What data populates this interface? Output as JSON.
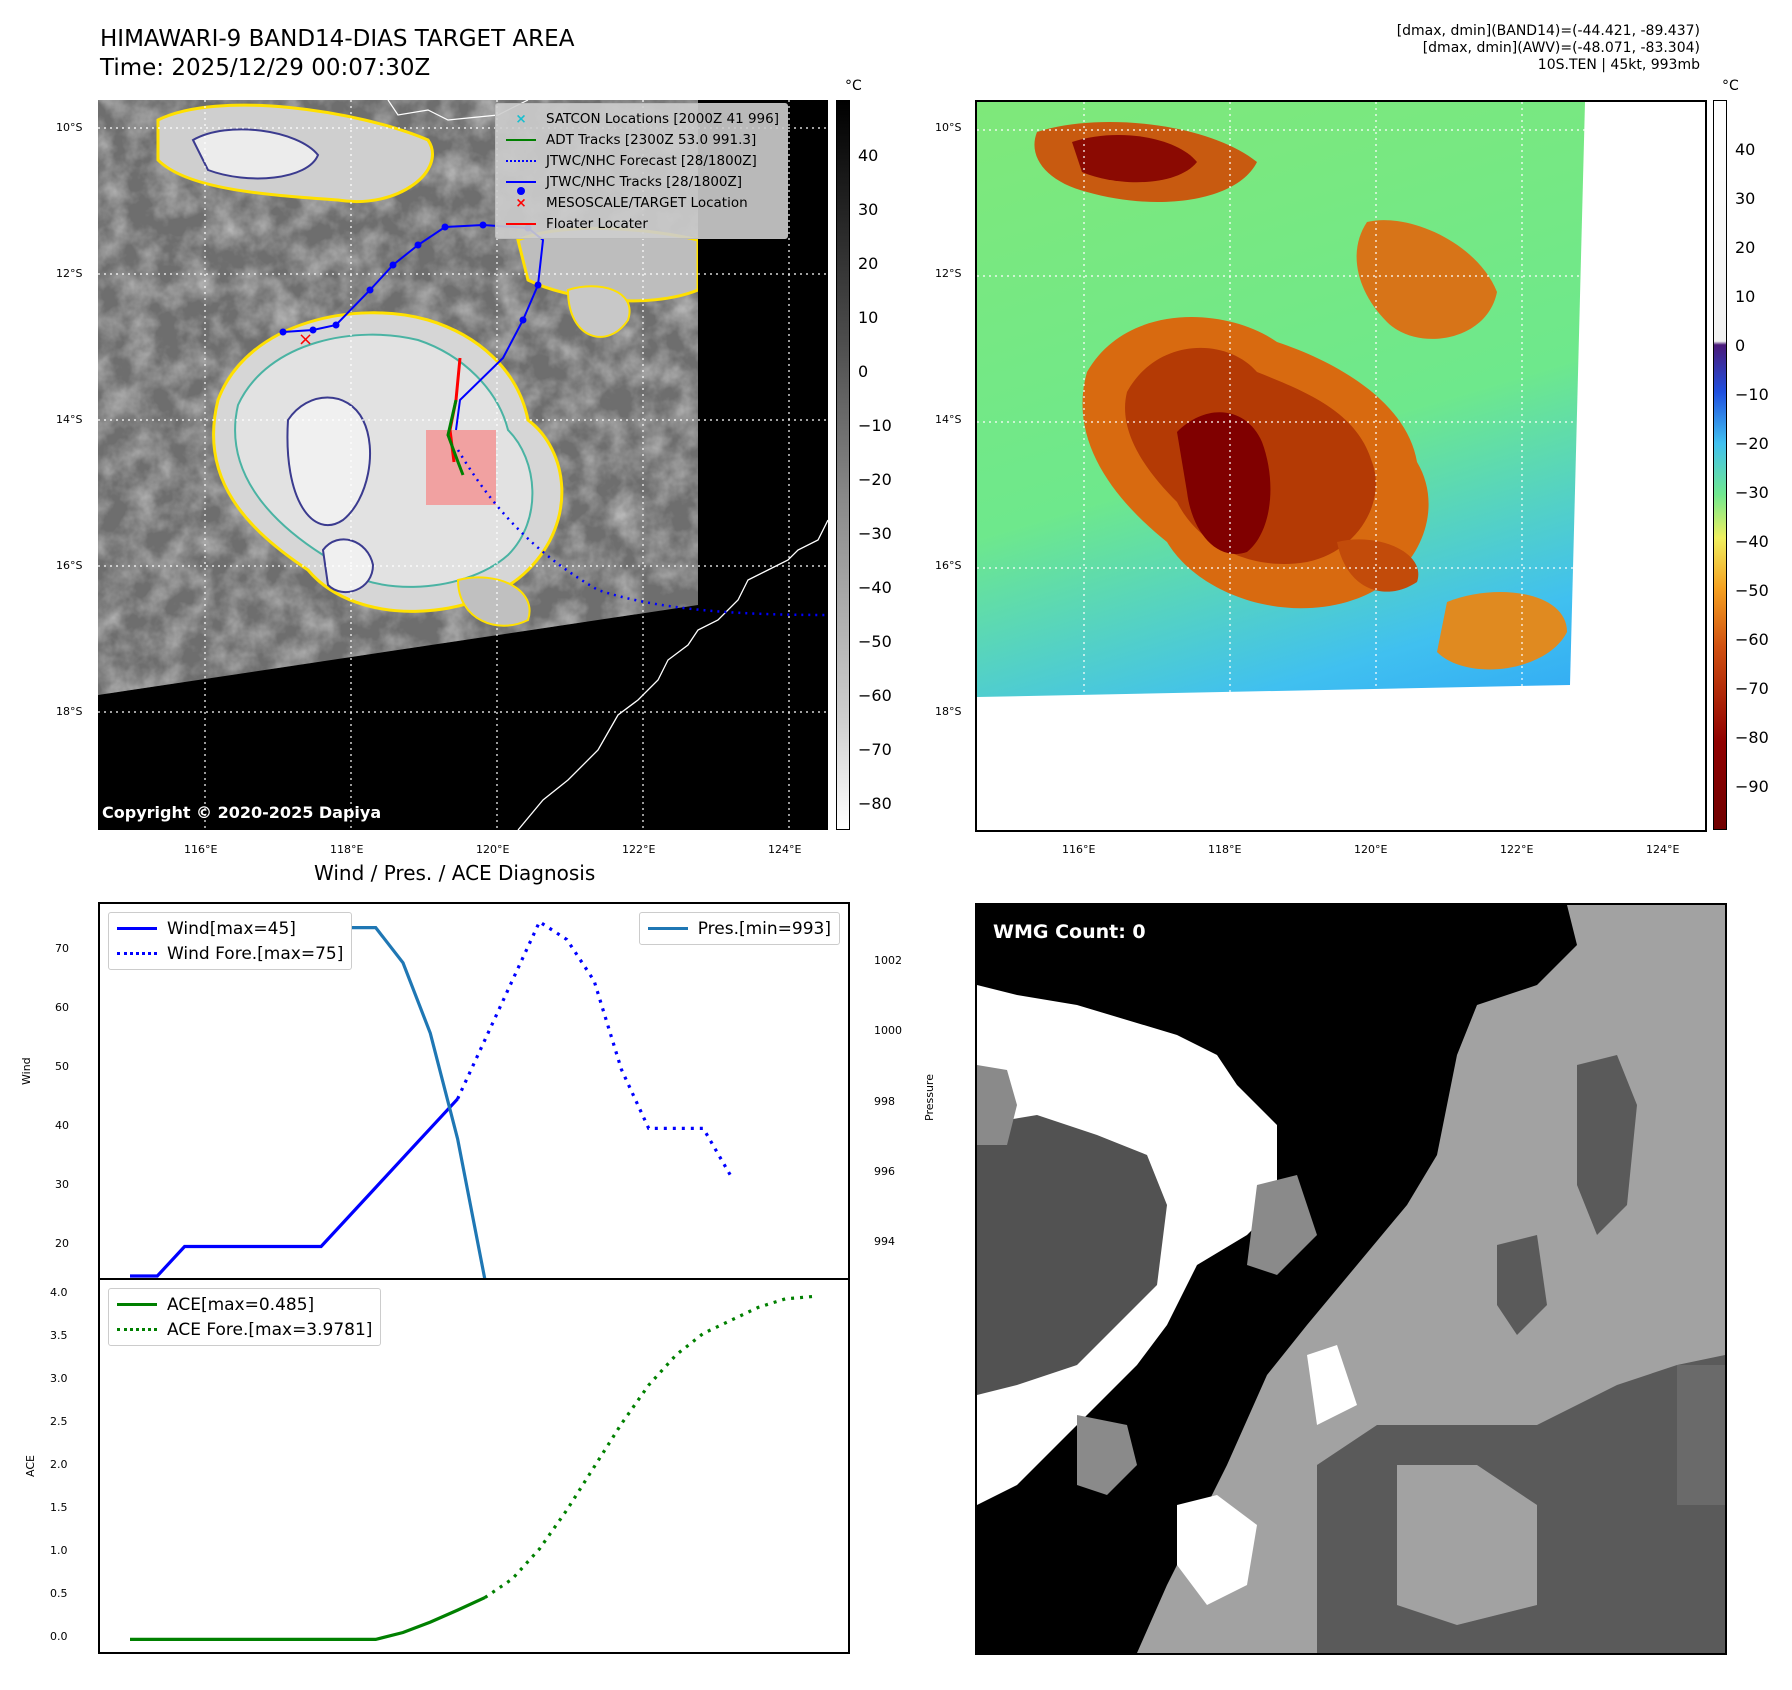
{
  "header": {
    "title_line1": "HIMAWARI-9 BAND14-DIAS TARGET AREA",
    "title_line2": "Time: 2025/12/29 00:07:30Z",
    "info_line1": "[dmax, dmin](BAND14)=(-44.421, -89.437)",
    "info_line2": "[dmax, dmin](AWV)=(-48.071, -83.304)",
    "info_line3": "10S.TEN | 45kt, 993mb"
  },
  "map_axes": {
    "lat_ticks": [
      "10°S",
      "12°S",
      "14°S",
      "16°S",
      "18°S"
    ],
    "lon_ticks": [
      "116°E",
      "118°E",
      "120°E",
      "122°E",
      "124°E"
    ]
  },
  "ir_panel": {
    "copyright": "Copyright © 2020-2025 Dapiya",
    "colorbar_unit": "°C",
    "colorbar_ticks": [
      "40",
      "30",
      "20",
      "10",
      "0",
      "−10",
      "−20",
      "−30",
      "−40",
      "−50",
      "−60",
      "−70",
      "−80"
    ],
    "legend": [
      {
        "label": "SATCON Locations [2000Z 41 996]",
        "symbol": "x",
        "color": "#17becf"
      },
      {
        "label": "ADT Tracks [2300Z 53.0 991.3]",
        "symbol": "line",
        "color": "#008000"
      },
      {
        "label": "JTWC/NHC Forecast [28/1800Z]",
        "symbol": "dotted",
        "color": "#0000ff"
      },
      {
        "label": "JTWC/NHC Tracks [28/1800Z]",
        "symbol": "line-dot",
        "color": "#0000ff"
      },
      {
        "label": "MESOSCALE/TARGET Location",
        "symbol": "x",
        "color": "#ff0000"
      },
      {
        "label": "Floater Locater",
        "symbol": "line",
        "color": "#ff0000"
      }
    ]
  },
  "awv_panel": {
    "colorbar_unit": "°C",
    "colorbar_ticks": [
      "40",
      "30",
      "20",
      "10",
      "0",
      "−10",
      "−20",
      "−30",
      "−40",
      "−50",
      "−60",
      "−70",
      "−80",
      "−90"
    ]
  },
  "wmg_panel": {
    "label": "WMG Count: 0"
  },
  "chart_data": [
    {
      "type": "line",
      "title": "Wind / Pres. / ACE Diagnosis",
      "ylabel": "Wind",
      "y2label": "Pressure",
      "ylim": [
        15,
        77
      ],
      "y2lim": [
        993.1,
        1003.5
      ],
      "yticks": [
        "70",
        "60",
        "50",
        "40",
        "30",
        "20"
      ],
      "y2ticks": [
        "1002",
        "1000",
        "998",
        "996",
        "994"
      ],
      "series": [
        {
          "name": "Wind[max=45]",
          "color": "#0000ff",
          "style": "solid",
          "values": [
            15,
            15,
            20,
            20,
            20,
            20,
            20,
            20,
            25,
            30,
            35,
            40,
            45
          ]
        },
        {
          "name": "Wind Fore.[max=75]",
          "color": "#0000ff",
          "style": "dotted",
          "values": [
            45,
            55,
            65,
            75,
            72,
            65,
            50,
            40,
            40,
            40,
            32
          ],
          "start_index": 12
        },
        {
          "name": "Pres.[min=993]",
          "color": "#1f77b4",
          "style": "solid",
          "axis": "right",
          "values": [
            1003,
            1003,
            1003,
            1003,
            1003,
            1003,
            1003,
            1003,
            1003,
            1003,
            1002,
            1000,
            997,
            993
          ]
        }
      ]
    },
    {
      "type": "line",
      "ylabel": "ACE",
      "ylim": [
        -0.1,
        4.1
      ],
      "yticks": [
        "4.0",
        "3.5",
        "3.0",
        "2.5",
        "2.0",
        "1.5",
        "1.0",
        "0.5",
        "0.0"
      ],
      "series": [
        {
          "name": "ACE[max=0.485]",
          "color": "#008000",
          "style": "solid",
          "values": [
            0,
            0,
            0,
            0,
            0,
            0,
            0,
            0,
            0,
            0,
            0.08,
            0.2,
            0.34,
            0.485
          ]
        },
        {
          "name": "ACE Fore.[max=3.9781]",
          "color": "#008000",
          "style": "dotted",
          "values": [
            0.485,
            0.7,
            1.05,
            1.5,
            2.0,
            2.5,
            2.95,
            3.3,
            3.55,
            3.7,
            3.85,
            3.95,
            3.9781
          ],
          "start_index": 13
        }
      ]
    }
  ]
}
